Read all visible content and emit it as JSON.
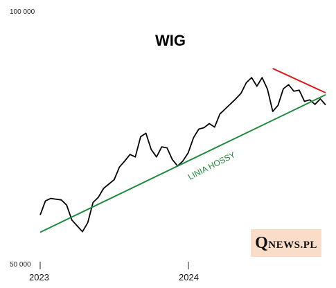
{
  "chart_data": {
    "type": "line",
    "title": "WIG",
    "ytick_labels": [
      "100 000",
      "50 000"
    ],
    "xtick_labels": [
      "2023",
      "2024"
    ],
    "ylim": [
      50000,
      100000
    ],
    "xlim": [
      "2023-01",
      "2025-04"
    ],
    "grid": false,
    "series": [
      {
        "color": "#000000",
        "x": [
          "2023-01",
          "2023-01",
          "2023-02",
          "2023-03",
          "2023-03",
          "2023-04",
          "2023-05",
          "2023-05",
          "2023-06",
          "2023-06",
          "2023-07",
          "2023-08",
          "2023-08",
          "2023-09",
          "2023-09",
          "2023-10",
          "2023-10",
          "2023-11",
          "2023-11",
          "2023-12",
          "2023-12",
          "2024-01",
          "2024-01",
          "2024-02",
          "2024-02",
          "2024-03",
          "2024-03",
          "2024-04",
          "2024-04",
          "2024-05",
          "2024-05",
          "2024-06",
          "2024-07",
          "2024-07",
          "2024-08",
          "2024-08",
          "2024-09",
          "2024-09",
          "2024-10",
          "2024-10",
          "2024-11",
          "2024-11",
          "2024-12",
          "2024-12",
          "2025-01",
          "2025-01",
          "2025-02",
          "2025-02",
          "2025-03",
          "2025-03",
          "2025-04"
        ],
        "values": [
          59500,
          62300,
          62800,
          62500,
          61500,
          58500,
          56200,
          58000,
          62000,
          63000,
          64800,
          66500,
          69000,
          70200,
          71500,
          71000,
          75000,
          75700,
          72500,
          71000,
          73000,
          72800,
          70500,
          69200,
          70200,
          71800,
          74800,
          76500,
          76800,
          77600,
          76900,
          79500,
          81500,
          82500,
          83600,
          85700,
          86700,
          85000,
          86700,
          84400,
          80000,
          81200,
          84500,
          85300,
          84000,
          84200,
          82000,
          82300,
          81400,
          82500,
          81300
        ]
      }
    ],
    "trendlines": [
      {
        "name": "LINIA HOSSY",
        "color": "#1e8a3c",
        "x": [
          "2023-01",
          "2025-04"
        ],
        "values": [
          56100,
          83300
        ]
      },
      {
        "color": "#e01818",
        "x": [
          "2024-11",
          "2025-04"
        ],
        "values": [
          88500,
          83700
        ]
      }
    ],
    "annotations": [
      {
        "text": "LINIA HOSSY",
        "color": "#1e8a3c"
      }
    ]
  },
  "logo": {
    "q": "Q",
    "rest": "NEWS.PL"
  }
}
